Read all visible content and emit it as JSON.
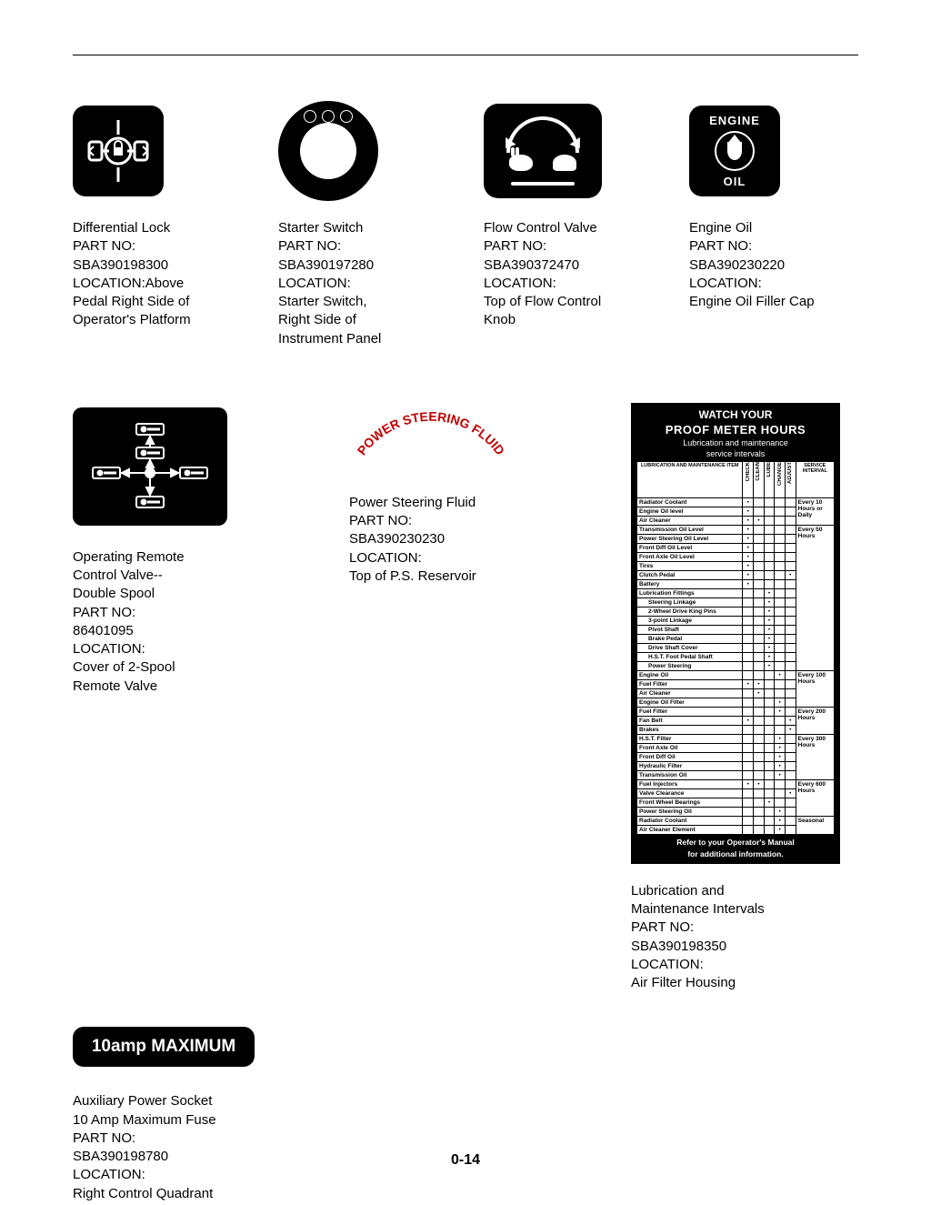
{
  "page_number": "0-14",
  "items": {
    "diff_lock": {
      "title": "Differential Lock",
      "part_label": "PART NO:",
      "part_no": "SBA390198300",
      "loc_label": "LOCATION:Above",
      "loc1": "Pedal Right Side of",
      "loc2": "Operator's Platform"
    },
    "starter": {
      "title": "Starter Switch",
      "part_label": "PART NO:",
      "part_no": "SBA390197280",
      "loc_label": "LOCATION:",
      "loc1": "Starter Switch,",
      "loc2": "Right Side of",
      "loc3": "Instrument Panel"
    },
    "flow": {
      "title": "Flow Control Valve",
      "part_label": "PART NO:",
      "part_no": "SBA390372470",
      "loc_label": "LOCATION:",
      "loc1": "Top of Flow Control",
      "loc2": "Knob"
    },
    "engine_oil": {
      "title": "Engine Oil",
      "part_label": "PART NO:",
      "part_no": "SBA390230220",
      "loc_label": "LOCATION:",
      "loc1": "Engine Oil Filler Cap",
      "decal_top": "ENGINE",
      "decal_bottom": "OIL"
    },
    "remote": {
      "title": "Operating Remote",
      "title2": "Control Valve--",
      "title3": "Double Spool",
      "part_label": "PART NO:",
      "part_no": "86401095",
      "loc_label": "LOCATION:",
      "loc1": "Cover of 2-Spool",
      "loc2": "Remote Valve"
    },
    "ps": {
      "decal": "POWER STEERING FLUID",
      "title": "Power Steering Fluid",
      "part_label": "PART NO:",
      "part_no": "SBA390230230",
      "loc_label": "LOCATION:",
      "loc1": "Top of P.S. Reservoir"
    },
    "maint": {
      "h1": "WATCH YOUR",
      "h2": "PROOF METER HOURS",
      "h3a": "Lubrication and maintenance",
      "h3b": "service intervals",
      "col_item": "LUBRICATION AND MAINTENANCE ITEM",
      "col_check": "CHECK",
      "col_clean": "CLEAN",
      "col_lube": "LUBE",
      "col_change": "CHANGE",
      "col_adjust": "ADJUST",
      "col_interval": "SERVICE INTERVAL",
      "int1": "Every 10 Hours or Daily",
      "int2": "Every 50 Hours",
      "int3": "Every 100 Hours",
      "int4": "Every 200 Hours",
      "int5": "Every 300 Hours",
      "int6": "Every 600 Hours",
      "int7": "Seasonal",
      "ftr1": "Refer to your Operator's Manual",
      "ftr2": "for additional information.",
      "desc_title": "Lubrication and",
      "desc_title2": "Maintenance Intervals",
      "part_label": "PART NO:",
      "part_no": "SBA390198350",
      "loc_label": "LOCATION:",
      "loc1": "Air Filter Housing",
      "g1": [
        "Radiator Coolant",
        "Engine Oil level",
        "Air Cleaner"
      ],
      "g2": [
        "Transmission Oil Level",
        "Power Steering Oil Level",
        "Front Diff Oil Level",
        "Front Axle Oil Level",
        "Tires",
        "Clutch Pedal",
        "Battery",
        "Lubrication Fittings"
      ],
      "g2s": [
        "Steering Linkage",
        "2-Wheel Drive King Pins",
        "3-point Linkage",
        "Pivot Shaft",
        "Brake Pedal",
        "Drive Shaft Cover",
        "H.S.T. Foot Pedal Shaft",
        "Power Steering"
      ],
      "g3": [
        "Engine Oil",
        "Fuel Filter",
        "Air Cleaner",
        "Engine Oil Filter"
      ],
      "g4": [
        "Fuel Filter",
        "Fan Belt",
        "Brakes"
      ],
      "g5": [
        "H.S.T. Filter",
        "Front Axle Oil",
        "Front Diff Oil",
        "Hydraulic Filter",
        "Transmission Oil"
      ],
      "g6": [
        "Fuel Injectors",
        "Valve Clearance",
        "Front Wheel Bearings",
        "Power Steering Oil"
      ],
      "g7": [
        "Radiator Coolant",
        "Air Cleaner Element"
      ]
    },
    "amp": {
      "decal": "10amp MAXIMUM",
      "title": "Auxiliary Power Socket",
      "title2": "10 Amp Maximum Fuse",
      "part_label": "PART NO:",
      "part_no": "SBA390198780",
      "loc_label": "LOCATION:",
      "loc1": "Right Control Quadrant"
    }
  }
}
